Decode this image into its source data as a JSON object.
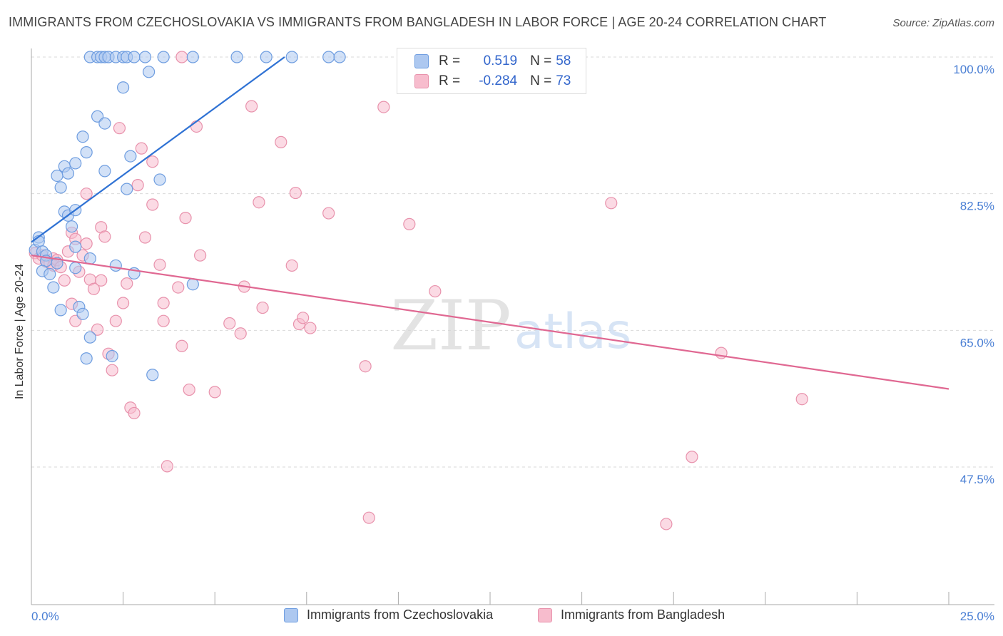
{
  "header": {
    "title": "IMMIGRANTS FROM CZECHOSLOVAKIA VS IMMIGRANTS FROM BANGLADESH IN LABOR FORCE | AGE 20-24 CORRELATION CHART",
    "source": "Source: ZipAtlas.com"
  },
  "legend": {
    "r_label": "R =",
    "n_label": "N =",
    "s1": {
      "r": "0.519",
      "n": "58"
    },
    "s2": {
      "r": "-0.284",
      "n": "73"
    }
  },
  "colors": {
    "blue_fill": "#adc8f0",
    "blue_stroke": "#6e9de0",
    "blue_line": "#2f72d4",
    "pink_fill": "#f7bccd",
    "pink_stroke": "#e892ac",
    "pink_line": "#e06892",
    "tick_text": "#4a7fd4",
    "grid": "#d9d9d9"
  },
  "watermark": {
    "zip": "ZIP",
    "atlas": "atlas"
  },
  "chart_data": {
    "type": "scatter",
    "title": "IMMIGRANTS FROM CZECHOSLOVAKIA VS IMMIGRANTS FROM BANGLADESH IN LABOR FORCE | AGE 20-24 CORRELATION CHART",
    "xlabel": "",
    "ylabel": "In Labor Force | Age 20-24",
    "xlim": [
      0,
      25
    ],
    "ylim": [
      30,
      100
    ],
    "x_tick_labels": [
      "0.0%",
      "25.0%"
    ],
    "y_ticks": [
      47.5,
      65.0,
      82.5,
      100.0
    ],
    "y_tick_labels": [
      "47.5%",
      "65.0%",
      "82.5%",
      "100.0%"
    ],
    "grid": true,
    "legend_position": "top-center",
    "series": [
      {
        "name": "Immigrants from Czechoslovakia",
        "color": "#adc8f0",
        "trend": {
          "x": [
            0.0,
            6.9
          ],
          "y": [
            76.3,
            100.0
          ]
        },
        "points": [
          [
            0.1,
            75.3
          ],
          [
            0.2,
            76.9
          ],
          [
            0.2,
            76.4
          ],
          [
            0.3,
            75.1
          ],
          [
            0.4,
            74.6
          ],
          [
            0.4,
            73.9
          ],
          [
            0.3,
            72.6
          ],
          [
            0.5,
            72.2
          ],
          [
            0.6,
            70.5
          ],
          [
            0.7,
            73.6
          ],
          [
            0.8,
            67.6
          ],
          [
            0.9,
            80.2
          ],
          [
            1.0,
            79.7
          ],
          [
            0.7,
            84.8
          ],
          [
            0.8,
            83.3
          ],
          [
            0.9,
            86.0
          ],
          [
            1.0,
            85.1
          ],
          [
            1.2,
            73.0
          ],
          [
            1.2,
            75.7
          ],
          [
            1.2,
            80.4
          ],
          [
            1.1,
            78.3
          ],
          [
            1.2,
            86.4
          ],
          [
            1.4,
            89.8
          ],
          [
            1.5,
            87.8
          ],
          [
            1.3,
            68.0
          ],
          [
            1.4,
            67.1
          ],
          [
            1.5,
            61.4
          ],
          [
            1.6,
            64.1
          ],
          [
            1.6,
            74.2
          ],
          [
            1.8,
            92.4
          ],
          [
            2.0,
            91.5
          ],
          [
            2.0,
            85.4
          ],
          [
            2.2,
            61.7
          ],
          [
            2.3,
            73.3
          ],
          [
            2.5,
            96.1
          ],
          [
            2.6,
            83.1
          ],
          [
            2.7,
            87.3
          ],
          [
            2.8,
            72.3
          ],
          [
            3.2,
            98.1
          ],
          [
            3.5,
            84.3
          ],
          [
            3.3,
            59.3
          ],
          [
            4.4,
            70.9
          ],
          [
            1.6,
            100
          ],
          [
            1.8,
            100
          ],
          [
            1.9,
            100
          ],
          [
            2.0,
            100
          ],
          [
            2.1,
            100
          ],
          [
            2.3,
            100
          ],
          [
            2.5,
            100
          ],
          [
            2.6,
            100
          ],
          [
            2.8,
            100
          ],
          [
            3.1,
            100
          ],
          [
            3.6,
            100
          ],
          [
            4.4,
            100
          ],
          [
            5.6,
            100
          ],
          [
            6.4,
            100
          ],
          [
            7.1,
            100
          ],
          [
            8.1,
            100
          ],
          [
            8.4,
            100
          ]
        ]
      },
      {
        "name": "Immigrants from Bangladesh",
        "color": "#f7bccd",
        "trend": {
          "x": [
            0.0,
            25.0
          ],
          "y": [
            74.6,
            57.5
          ]
        },
        "points": [
          [
            0.1,
            74.9
          ],
          [
            0.2,
            74.2
          ],
          [
            0.3,
            74.6
          ],
          [
            0.4,
            73.8
          ],
          [
            0.5,
            73.6
          ],
          [
            0.6,
            74.2
          ],
          [
            0.6,
            73.3
          ],
          [
            0.7,
            74.0
          ],
          [
            0.8,
            73.1
          ],
          [
            0.9,
            71.4
          ],
          [
            1.0,
            75.1
          ],
          [
            1.1,
            77.5
          ],
          [
            1.1,
            68.4
          ],
          [
            1.2,
            76.7
          ],
          [
            1.2,
            66.2
          ],
          [
            1.3,
            72.5
          ],
          [
            1.4,
            74.6
          ],
          [
            1.5,
            76.1
          ],
          [
            1.5,
            82.5
          ],
          [
            1.6,
            71.5
          ],
          [
            1.7,
            70.3
          ],
          [
            1.8,
            65.1
          ],
          [
            1.9,
            78.2
          ],
          [
            1.9,
            71.4
          ],
          [
            2.0,
            77.0
          ],
          [
            2.1,
            62.0
          ],
          [
            2.2,
            59.9
          ],
          [
            2.3,
            66.2
          ],
          [
            2.4,
            90.9
          ],
          [
            2.5,
            68.5
          ],
          [
            2.6,
            71.0
          ],
          [
            2.7,
            55.1
          ],
          [
            2.8,
            54.4
          ],
          [
            2.9,
            83.6
          ],
          [
            3.0,
            88.3
          ],
          [
            3.1,
            76.9
          ],
          [
            3.3,
            86.6
          ],
          [
            3.3,
            81.1
          ],
          [
            3.5,
            73.4
          ],
          [
            3.6,
            66.2
          ],
          [
            3.6,
            68.5
          ],
          [
            3.7,
            47.6
          ],
          [
            4.0,
            70.5
          ],
          [
            4.1,
            63.0
          ],
          [
            4.2,
            79.4
          ],
          [
            4.3,
            57.4
          ],
          [
            4.5,
            91.1
          ],
          [
            4.6,
            74.6
          ],
          [
            5.0,
            57.1
          ],
          [
            5.4,
            65.9
          ],
          [
            5.7,
            64.6
          ],
          [
            5.8,
            70.6
          ],
          [
            6.0,
            93.7
          ],
          [
            6.2,
            81.4
          ],
          [
            6.3,
            67.9
          ],
          [
            6.8,
            89.1
          ],
          [
            7.1,
            73.3
          ],
          [
            7.2,
            82.6
          ],
          [
            7.3,
            65.8
          ],
          [
            7.4,
            66.6
          ],
          [
            7.6,
            65.3
          ],
          [
            8.1,
            80.0
          ],
          [
            9.1,
            60.4
          ],
          [
            9.2,
            41.0
          ],
          [
            9.6,
            93.6
          ],
          [
            10.3,
            78.6
          ],
          [
            11.0,
            70.0
          ],
          [
            15.8,
            81.3
          ],
          [
            17.3,
            40.2
          ],
          [
            18.0,
            48.8
          ],
          [
            18.8,
            62.1
          ],
          [
            21.0,
            56.2
          ],
          [
            4.1,
            100
          ]
        ]
      }
    ]
  }
}
